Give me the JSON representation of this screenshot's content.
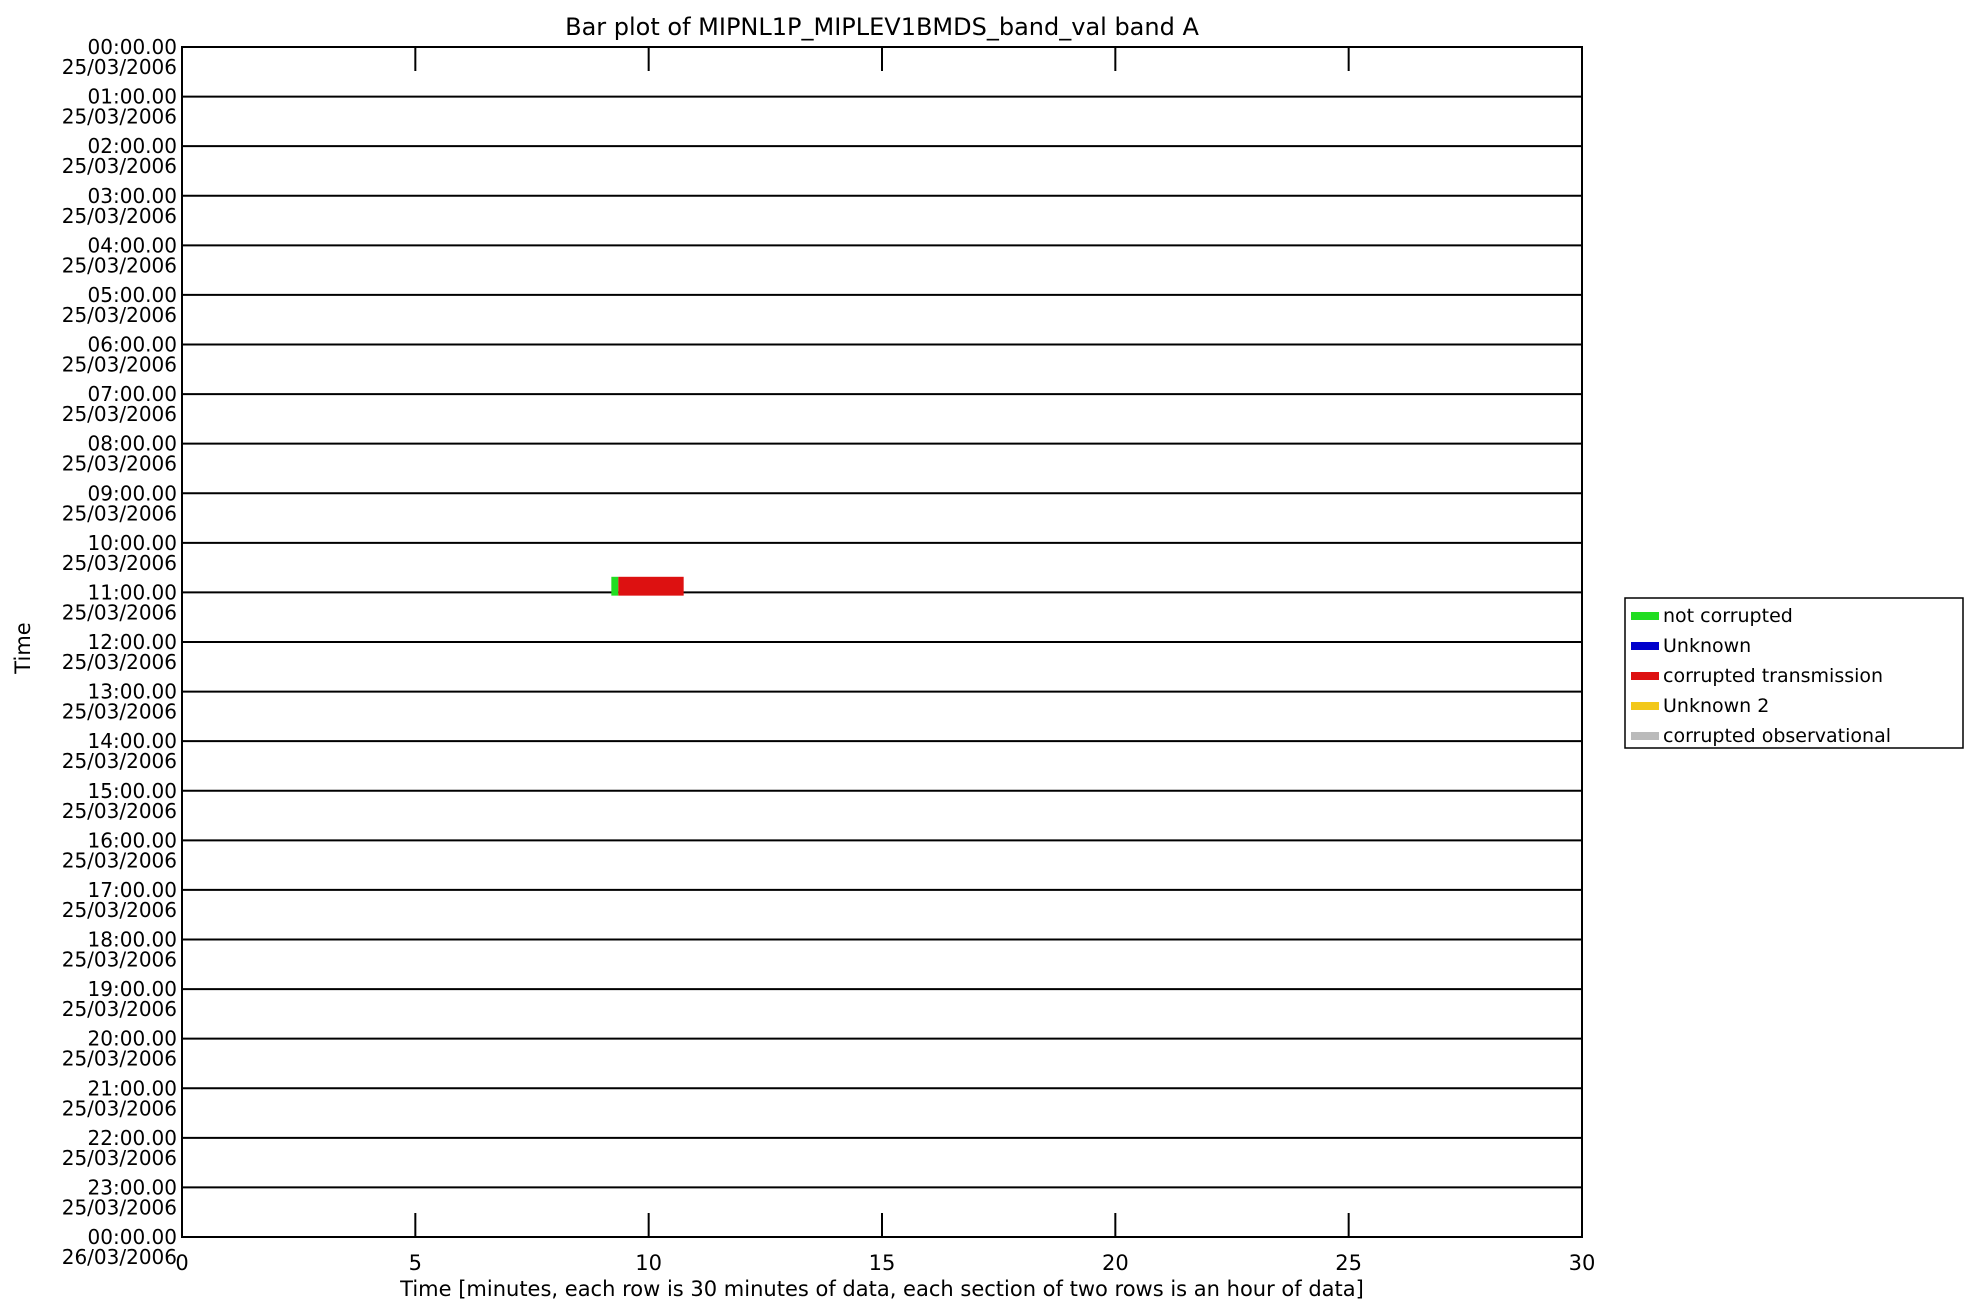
{
  "chart_data": {
    "type": "bar",
    "title": "Bar plot of MIPNL1P_MIPLEV1BMDS_band_val band A",
    "xlabel": "Time [minutes, each row is 30 minutes of data, each section of two rows is an hour of data]",
    "ylabel": "Time",
    "xlim": [
      0,
      30
    ],
    "x_ticks": [
      "0",
      "5",
      "10",
      "15",
      "20",
      "25",
      "30"
    ],
    "y_ticks": [
      {
        "time": "00:00.00",
        "date": "25/03/2006"
      },
      {
        "time": "01:00.00",
        "date": "25/03/2006"
      },
      {
        "time": "02:00.00",
        "date": "25/03/2006"
      },
      {
        "time": "03:00.00",
        "date": "25/03/2006"
      },
      {
        "time": "04:00.00",
        "date": "25/03/2006"
      },
      {
        "time": "05:00.00",
        "date": "25/03/2006"
      },
      {
        "time": "06:00.00",
        "date": "25/03/2006"
      },
      {
        "time": "07:00.00",
        "date": "25/03/2006"
      },
      {
        "time": "08:00.00",
        "date": "25/03/2006"
      },
      {
        "time": "09:00.00",
        "date": "25/03/2006"
      },
      {
        "time": "10:00.00",
        "date": "25/03/2006"
      },
      {
        "time": "11:00.00",
        "date": "25/03/2006"
      },
      {
        "time": "12:00.00",
        "date": "25/03/2006"
      },
      {
        "time": "13:00.00",
        "date": "25/03/2006"
      },
      {
        "time": "14:00.00",
        "date": "25/03/2006"
      },
      {
        "time": "15:00.00",
        "date": "25/03/2006"
      },
      {
        "time": "16:00.00",
        "date": "25/03/2006"
      },
      {
        "time": "17:00.00",
        "date": "25/03/2006"
      },
      {
        "time": "18:00.00",
        "date": "25/03/2006"
      },
      {
        "time": "19:00.00",
        "date": "25/03/2006"
      },
      {
        "time": "20:00.00",
        "date": "25/03/2006"
      },
      {
        "time": "21:00.00",
        "date": "25/03/2006"
      },
      {
        "time": "22:00.00",
        "date": "25/03/2006"
      },
      {
        "time": "23:00.00",
        "date": "25/03/2006"
      },
      {
        "time": "00:00.00",
        "date": "26/03/2006"
      }
    ],
    "series": [
      {
        "name": "not corrupted",
        "color": "#22dd22"
      },
      {
        "name": "Unknown",
        "color": "#0000cc"
      },
      {
        "name": "corrupted transmission",
        "color": "#dd1111"
      },
      {
        "name": "Unknown 2",
        "color": "#f2c81a"
      },
      {
        "name": "corrupted observational",
        "color": "#bbbbbb"
      }
    ],
    "bars": [
      {
        "hour": "10:00.00",
        "date": "25/03/2006",
        "half": "second",
        "start_min": 9.2,
        "end_min": 9.35,
        "category": "not corrupted"
      },
      {
        "hour": "10:00.00",
        "date": "25/03/2006",
        "half": "second",
        "start_min": 9.35,
        "end_min": 10.75,
        "category": "corrupted transmission"
      }
    ],
    "legend_position": "right",
    "grid": false
  }
}
